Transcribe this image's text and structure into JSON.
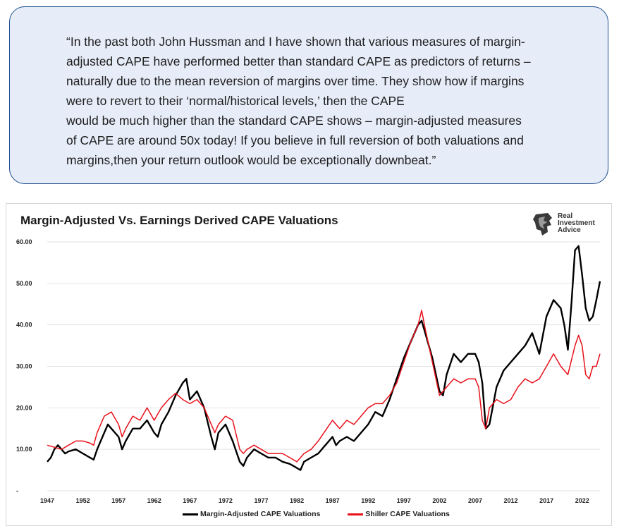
{
  "quote": {
    "text": "“In the past both John Hussman and I have shown that various measures of margin-\nadjusted CAPE have performed better than standard CAPE as predictors of returns –\nnaturally due to the mean reversion of margins over time. They show how if margins\nwere to revert to their ‘normal/historical levels,’ then the CAPE\nwould be much higher than the standard CAPE shows – margin-adjusted measures\nof CAPE are around 50x today! If you believe in full reversion of both valuations and\nmargins,then your return outlook would be exceptionally downbeat.”"
  },
  "logo": {
    "icon": "lion-head-icon",
    "lines": [
      "Real",
      "Investment",
      "Advice"
    ]
  },
  "chart_data": {
    "type": "line",
    "title": "Margin-Adjusted Vs. Earnings Derived CAPE Valuations",
    "xlabel": "",
    "ylabel": "",
    "xlim": [
      1947,
      2024.5
    ],
    "ylim": [
      0,
      60
    ],
    "y_ticks": [
      "60.00",
      "50.00",
      "40.00",
      "30.00",
      "20.00",
      "10.00",
      "-"
    ],
    "y_tick_values": [
      60,
      50,
      40,
      30,
      20,
      10,
      0
    ],
    "x_ticks": [
      "1947",
      "1952",
      "1957",
      "1962",
      "1967",
      "1972",
      "1977",
      "1982",
      "1987",
      "1992",
      "1997",
      "2002",
      "2007",
      "2012",
      "2017",
      "2022"
    ],
    "x_tick_values": [
      1947,
      1952,
      1957,
      1962,
      1967,
      1972,
      1977,
      1982,
      1987,
      1992,
      1997,
      2002,
      2007,
      2012,
      2017,
      2022
    ],
    "grid": true,
    "legend_position": "bottom",
    "series": [
      {
        "name": "Margin-Adjusted CAPE Valuations",
        "color": "#000000",
        "x": [
          1947,
          1947.5,
          1948,
          1948.5,
          1949,
          1949.5,
          1950,
          1951,
          1952,
          1953,
          1953.5,
          1954,
          1955,
          1955.5,
          1956,
          1957,
          1957.5,
          1958,
          1959,
          1960,
          1961,
          1962,
          1962.5,
          1963,
          1964,
          1965,
          1966,
          1966.5,
          1967,
          1968,
          1969,
          1970,
          1970.5,
          1971,
          1972,
          1973,
          1974,
          1974.5,
          1975,
          1976,
          1977,
          1978,
          1979,
          1980,
          1981,
          1982,
          1982.5,
          1983,
          1984,
          1985,
          1986,
          1987,
          1987.5,
          1988,
          1989,
          1990,
          1991,
          1992,
          1993,
          1994,
          1995,
          1996,
          1997,
          1998,
          1999,
          1999.5,
          2000,
          2001,
          2002,
          2002.5,
          2003,
          2004,
          2005,
          2006,
          2007,
          2007.5,
          2008,
          2008.5,
          2009,
          2010,
          2011,
          2012,
          2013,
          2014,
          2015,
          2016,
          2017,
          2018,
          2019,
          2019.5,
          2020,
          2020.5,
          2021,
          2021.5,
          2022,
          2022.5,
          2023,
          2023.5,
          2024,
          2024.5
        ],
        "values": [
          7,
          8,
          10,
          11,
          10,
          9,
          9.5,
          10,
          9,
          8,
          7.5,
          10,
          14,
          16,
          15,
          13,
          10,
          12,
          15,
          15,
          17,
          14,
          13,
          16,
          19,
          23,
          26,
          27,
          22,
          24,
          20,
          13,
          10,
          14,
          16,
          12,
          7,
          6,
          8,
          10,
          9,
          8,
          8,
          7,
          6.5,
          5.5,
          5,
          7,
          8,
          9,
          11,
          13,
          11,
          12,
          13,
          12,
          14,
          16,
          19,
          18,
          22,
          27,
          32,
          36,
          40,
          41,
          38,
          32,
          24,
          23,
          28,
          33,
          31,
          33,
          33,
          31,
          26,
          15,
          16,
          25,
          29,
          31,
          33,
          35,
          38,
          33,
          42,
          46,
          44,
          40,
          34,
          45,
          58,
          59,
          52,
          44,
          41,
          42,
          46,
          50.5
        ]
      },
      {
        "name": "Shiller CAPE Valuations",
        "color": "#e8101a",
        "x": [
          1947,
          1948,
          1949,
          1950,
          1951,
          1952,
          1953,
          1953.5,
          1954,
          1955,
          1956,
          1957,
          1957.5,
          1958,
          1959,
          1960,
          1961,
          1962,
          1963,
          1964,
          1965,
          1966,
          1967,
          1968,
          1969,
          1970,
          1970.5,
          1971,
          1972,
          1973,
          1974,
          1974.5,
          1975,
          1976,
          1977,
          1978,
          1979,
          1980,
          1981,
          1982,
          1983,
          1984,
          1985,
          1986,
          1987,
          1988,
          1989,
          1990,
          1991,
          1992,
          1993,
          1994,
          1995,
          1996,
          1997,
          1998,
          1999,
          1999.5,
          2000,
          2001,
          2002,
          2003,
          2004,
          2005,
          2006,
          2007,
          2007.5,
          2008,
          2008.5,
          2009,
          2010,
          2011,
          2012,
          2013,
          2014,
          2015,
          2016,
          2017,
          2018,
          2019,
          2020,
          2021,
          2021.5,
          2022,
          2022.5,
          2023,
          2023.5,
          2024,
          2024.5
        ],
        "values": [
          11,
          10.5,
          10,
          11,
          12,
          12,
          11.5,
          11,
          14,
          18,
          19,
          16,
          13,
          15,
          18,
          17,
          20,
          17,
          20,
          22,
          23.5,
          22,
          21,
          22,
          20,
          16,
          14,
          16,
          18,
          17,
          10,
          9,
          10,
          11,
          10,
          9,
          9,
          9,
          8,
          7,
          9,
          10,
          12,
          14.5,
          17,
          15,
          17,
          16,
          18,
          20,
          21,
          21,
          23,
          26,
          31,
          36,
          40,
          43.5,
          39,
          31,
          23,
          25,
          27,
          26,
          27,
          27,
          25,
          17,
          15,
          20,
          22,
          21,
          22,
          25,
          27,
          26,
          27,
          30,
          33,
          30,
          28,
          35,
          37.5,
          35,
          28,
          27,
          30,
          30,
          33
        ]
      }
    ]
  }
}
